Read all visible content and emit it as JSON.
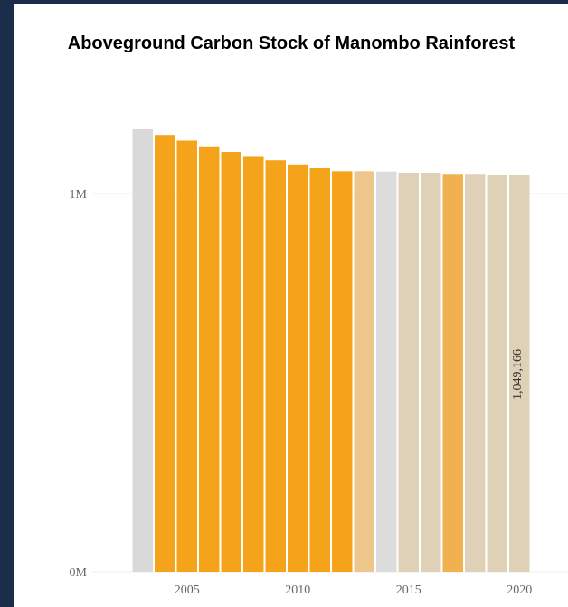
{
  "chart_data": {
    "type": "bar",
    "title": "Aboveground Carbon Stock of Manombo Rainforest",
    "xlabel": "",
    "ylabel": "",
    "categories": [
      "2003",
      "2004",
      "2005",
      "2006",
      "2007",
      "2008",
      "2009",
      "2010",
      "2011",
      "2012",
      "2013",
      "2014",
      "2015",
      "2016",
      "2017",
      "2018",
      "2019",
      "2020"
    ],
    "values": [
      1170000,
      1155000,
      1140000,
      1125000,
      1110000,
      1097000,
      1088000,
      1077000,
      1067000,
      1059000,
      1059000,
      1058000,
      1055000,
      1055000,
      1052000,
      1052000,
      1049166,
      1049166
    ],
    "bar_colors": [
      "#d9d9d9",
      "#f5a31b",
      "#f5a31b",
      "#f5a31b",
      "#f5a31b",
      "#f5a31b",
      "#f5a31b",
      "#f5a31b",
      "#f5a31b",
      "#f5a31b",
      "#ecc68a",
      "#dcdcdc",
      "#dfd1b8",
      "#dfd1b8",
      "#f0b14e",
      "#dfd1b8",
      "#dfd1b8",
      "#dfd1b8"
    ],
    "ylim": [
      0,
      1200000
    ],
    "y_ticks": [
      {
        "value": 0,
        "label": "0M"
      },
      {
        "value": 1000000,
        "label": "1M"
      }
    ],
    "x_tick_labels": [
      {
        "category": "2005",
        "label": "2005"
      },
      {
        "category": "2010",
        "label": "2010"
      },
      {
        "category": "2015",
        "label": "2015"
      },
      {
        "category": "2020",
        "label": "2020"
      }
    ],
    "data_labels": [
      {
        "category": "2020",
        "text": "1,049,166"
      }
    ],
    "grid": true,
    "gridline_color": "#eeeeee"
  }
}
